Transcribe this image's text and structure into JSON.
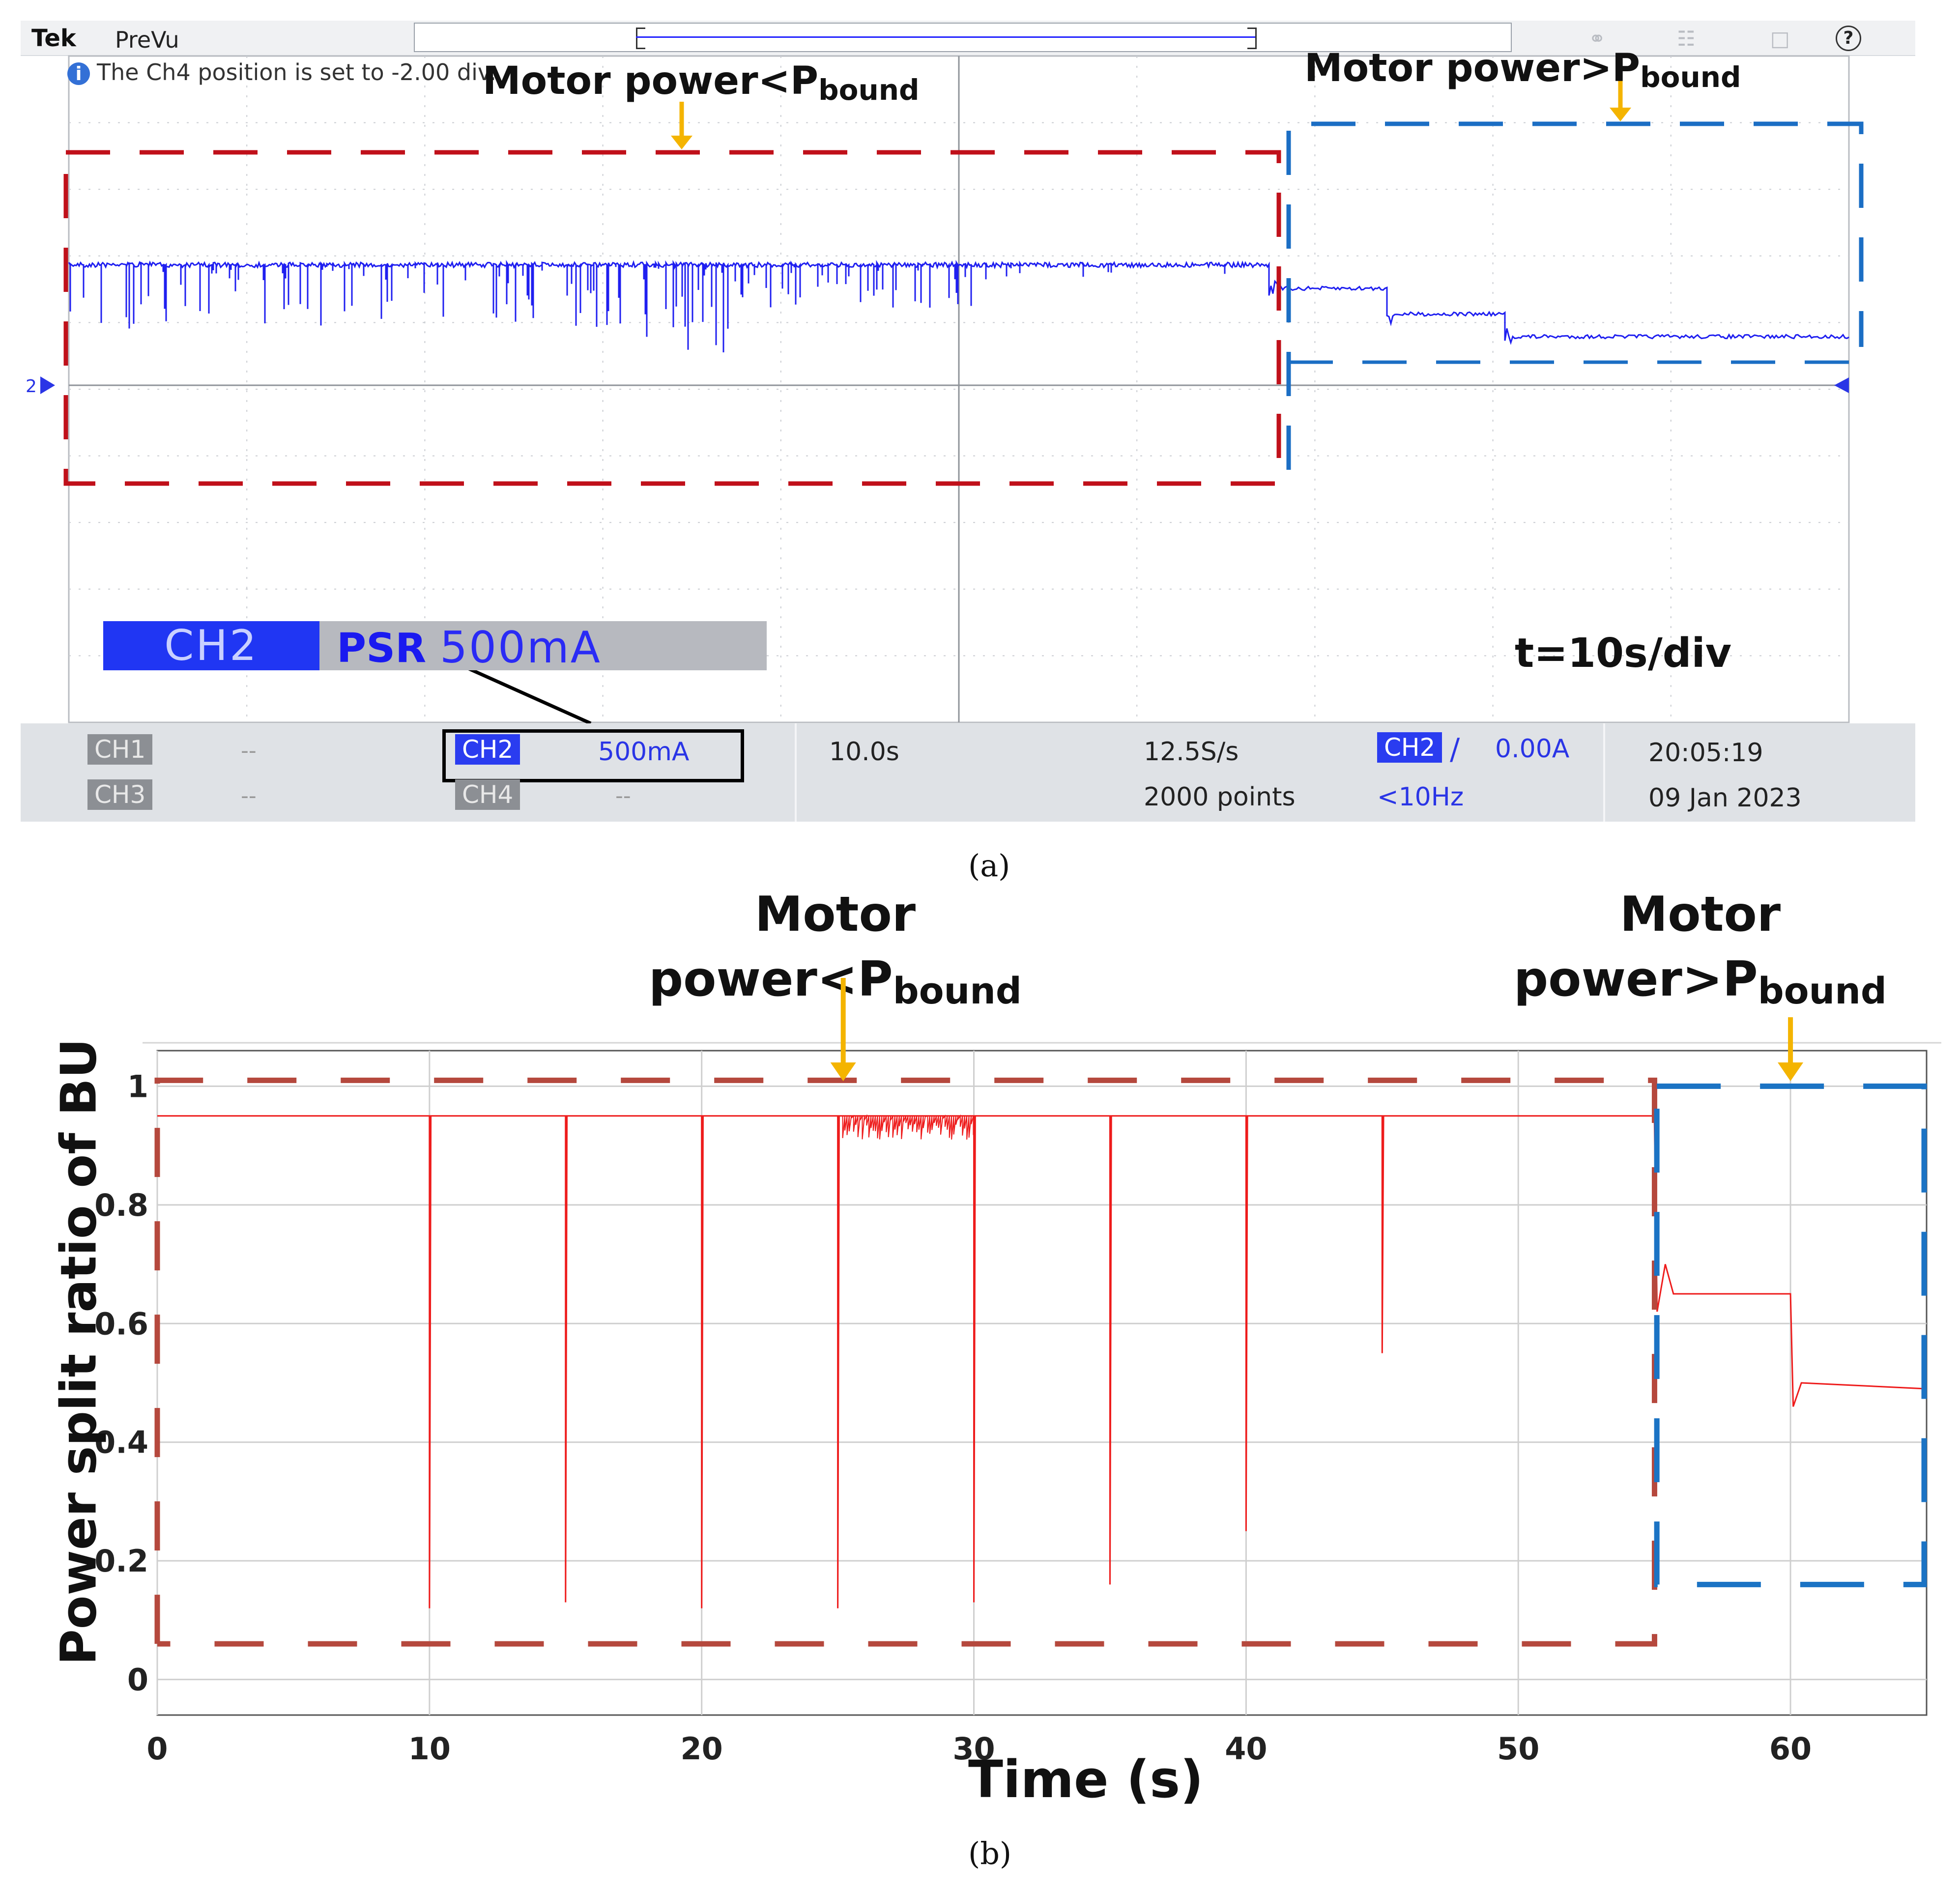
{
  "oscilloscope": {
    "brand": "Tek",
    "mode": "PreVu",
    "message": "The Ch4 position is set to -2.00 div.",
    "message_icon": "info-icon",
    "annotations": {
      "left_main": "Motor power<P",
      "left_sub": "bound",
      "right_main": "Motor power>P",
      "right_sub": "bound"
    },
    "channel_label": {
      "channel": "CH2",
      "name": "PSR",
      "scale": "500mA"
    },
    "timebase_label": "t=10s/div",
    "ground_marker": "2",
    "status": {
      "ch1": "CH1",
      "ch1_value": "--",
      "ch2": "CH2",
      "ch2_value": "500mA",
      "ch3": "CH3",
      "ch3_value": "--",
      "ch4": "CH4",
      "ch4_value": "--",
      "horizontal_scale": "10.0s",
      "sample_rate": "12.5S/s",
      "record_length": "2000 points",
      "trigger_source": "CH2",
      "trigger_level": "0.00A",
      "trigger_freq": "<10Hz",
      "time": "20:05:19",
      "date": "09 Jan 2023"
    },
    "colors": {
      "trace": "#1f1ff0",
      "red_box": "#c0101a",
      "blue_box": "#1b6ec4",
      "arrow": "#f4b400"
    }
  },
  "caption_a": "(a)",
  "caption_b": "(b)",
  "chart_data": {
    "type": "line",
    "title_left_main": "Motor",
    "title_left_line2": "power<P",
    "title_left_sub": "bound",
    "title_right_main": "Motor",
    "title_right_line2": "power>P",
    "title_right_sub": "bound",
    "xlabel": "Time (s)",
    "ylabel": "Power split ratio of BU",
    "xlim": [
      0,
      65
    ],
    "ylim": [
      -0.06,
      1.06
    ],
    "xticks": [
      0,
      10,
      20,
      30,
      40,
      50,
      60
    ],
    "xtick_labels": [
      "0",
      "10",
      "20",
      "30",
      "40",
      "50",
      "60"
    ],
    "yticks": [
      0,
      0.2,
      0.4,
      0.6,
      0.8,
      1
    ],
    "ytick_labels": [
      "0",
      "0.2",
      "0.4",
      "0.6",
      "0.8",
      "1"
    ],
    "grid": true,
    "series": [
      {
        "name": "Power split ratio of BU",
        "color": "#ee1c1c",
        "x": [
          0,
          10,
          10,
          10.05,
          15,
          15,
          15.05,
          20,
          20,
          20.05,
          25,
          25,
          25.05,
          30,
          30,
          30.05,
          35,
          35,
          35.05,
          40,
          40,
          40.05,
          45,
          45,
          45.05,
          55,
          55.1,
          55.4,
          55.7,
          60,
          60.1,
          60.4,
          65
        ],
        "y": [
          0.95,
          0.95,
          0.12,
          0.95,
          0.95,
          0.13,
          0.95,
          0.95,
          0.12,
          0.95,
          0.95,
          0.12,
          0.95,
          0.95,
          0.13,
          0.95,
          0.95,
          0.16,
          0.95,
          0.95,
          0.25,
          0.95,
          0.95,
          0.55,
          0.95,
          0.95,
          0.62,
          0.7,
          0.65,
          0.65,
          0.46,
          0.5,
          0.49
        ]
      }
    ],
    "annotation_regions": [
      {
        "name": "motor-power-below-bound",
        "x": [
          0,
          54.5
        ],
        "y": [
          0.06,
          1.01
        ],
        "color": "#b5483d"
      },
      {
        "name": "motor-power-above-bound",
        "x": [
          55,
          65
        ],
        "y": [
          0.16,
          1.0
        ],
        "color": "#1b73c4"
      }
    ]
  }
}
